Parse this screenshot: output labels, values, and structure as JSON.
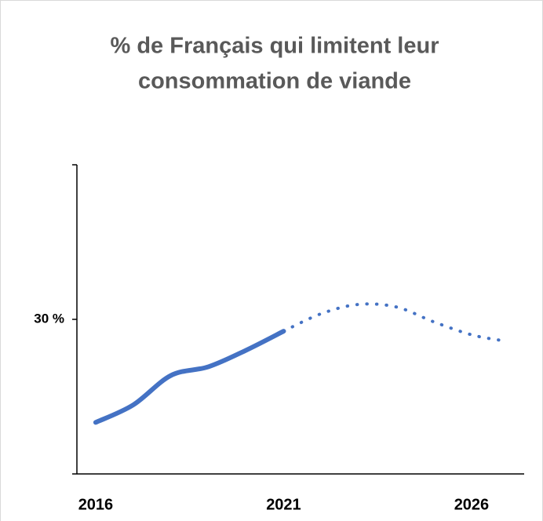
{
  "chart_data": {
    "type": "line",
    "title": "% de Français qui limitent leur",
    "subtitle": "consommation de viande",
    "x": [
      2016,
      2017,
      2018,
      2019,
      2020,
      2021,
      2022,
      2023,
      2024,
      2025,
      2026,
      2026.8
    ],
    "series": [
      {
        "color": "#4472c4",
        "style": "solid",
        "values": [
          10,
          13.4,
          19.1,
          20.8,
          24,
          27.7,
          null,
          null,
          null,
          null,
          null,
          null
        ]
      },
      {
        "color": "#4472c4",
        "style": "dotted",
        "values": [
          null,
          null,
          null,
          null,
          null,
          27.7,
          31.1,
          32.9,
          32.4,
          29.5,
          27,
          25.9
        ]
      }
    ],
    "xlim": [
      2015.5,
      2027.4
    ],
    "xticks": [
      2016,
      2021,
      2026
    ],
    "ylim": [
      0,
      60
    ],
    "yticks": [
      {
        "value": 30,
        "label": "30 %"
      }
    ],
    "grid": false
  }
}
